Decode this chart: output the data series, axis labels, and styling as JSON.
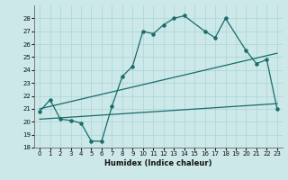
{
  "xlabel": "Humidex (Indice chaleur)",
  "bg_color": "#cce8e8",
  "line_color": "#1a6b6b",
  "xlim": [
    -0.5,
    23.5
  ],
  "ylim": [
    18,
    29
  ],
  "yticks": [
    18,
    19,
    20,
    21,
    22,
    23,
    24,
    25,
    26,
    27,
    28
  ],
  "xticks": [
    0,
    1,
    2,
    3,
    4,
    5,
    6,
    7,
    8,
    9,
    10,
    11,
    12,
    13,
    14,
    15,
    16,
    17,
    18,
    19,
    20,
    21,
    22,
    23
  ],
  "line1_x": [
    0,
    1,
    2,
    3,
    4,
    5,
    6,
    7,
    8,
    9,
    10,
    11,
    12,
    13,
    14,
    16,
    17,
    18,
    20,
    21,
    22,
    23
  ],
  "line1_y": [
    20.8,
    21.7,
    20.2,
    20.1,
    19.9,
    18.5,
    18.5,
    21.2,
    23.5,
    24.3,
    27.0,
    26.8,
    27.5,
    28.0,
    28.2,
    27.0,
    26.5,
    28.0,
    25.5,
    24.5,
    24.8,
    21.0
  ],
  "line2_x": [
    0,
    23
  ],
  "line2_y": [
    21.0,
    25.3
  ],
  "line3_x": [
    0,
    23
  ],
  "line3_y": [
    20.2,
    21.4
  ]
}
